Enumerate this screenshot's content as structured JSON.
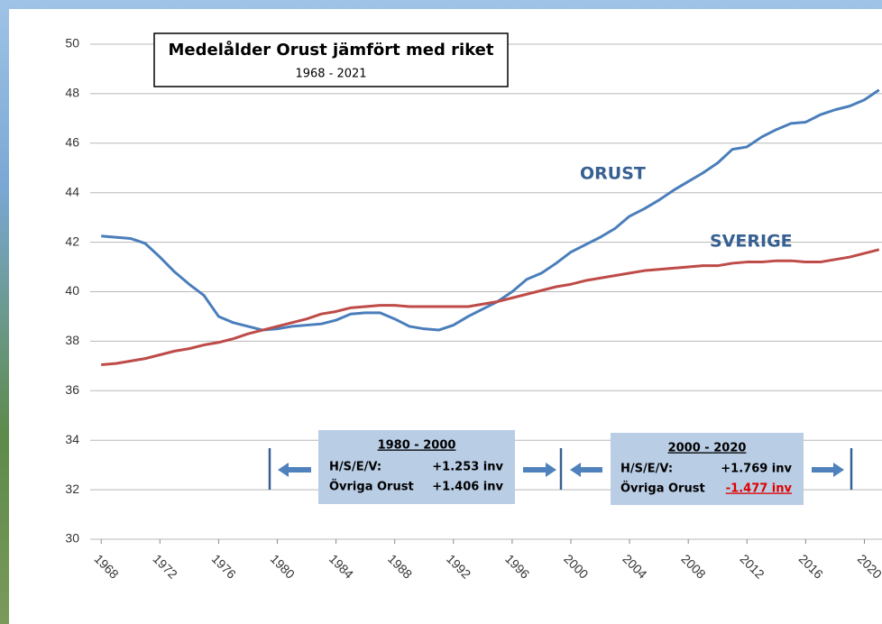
{
  "chart_data": {
    "type": "line",
    "title": "Medelålder Orust jämfört med riket",
    "subtitle": "1968 - 2021",
    "x": [
      1968,
      1969,
      1970,
      1971,
      1972,
      1973,
      1974,
      1975,
      1976,
      1977,
      1978,
      1979,
      1980,
      1981,
      1982,
      1983,
      1984,
      1985,
      1986,
      1987,
      1988,
      1989,
      1990,
      1991,
      1992,
      1993,
      1994,
      1995,
      1996,
      1997,
      1998,
      1999,
      2000,
      2001,
      2002,
      2003,
      2004,
      2005,
      2006,
      2007,
      2008,
      2009,
      2010,
      2011,
      2012,
      2013,
      2014,
      2015,
      2016,
      2017,
      2018,
      2019,
      2020,
      2021
    ],
    "series": [
      {
        "name": "ORUST",
        "color": "#4a7ebb",
        "values": [
          42.25,
          42.2,
          42.15,
          41.95,
          41.4,
          40.8,
          40.3,
          39.85,
          39.0,
          38.75,
          38.6,
          38.45,
          38.5,
          38.6,
          38.65,
          38.7,
          38.85,
          39.1,
          39.15,
          39.15,
          38.9,
          38.6,
          38.5,
          38.45,
          38.65,
          39.0,
          39.3,
          39.6,
          40.0,
          40.5,
          40.75,
          41.15,
          41.6,
          41.9,
          42.2,
          42.55,
          43.05,
          43.35,
          43.7,
          44.1,
          44.45,
          44.8,
          45.2,
          45.75,
          45.85,
          46.25,
          46.55,
          46.8,
          46.85,
          47.15,
          47.35,
          47.5,
          47.75,
          48.15
        ]
      },
      {
        "name": "SVERIGE",
        "color": "#be4b48",
        "values": [
          37.05,
          37.1,
          37.2,
          37.3,
          37.45,
          37.6,
          37.7,
          37.85,
          37.95,
          38.1,
          38.3,
          38.45,
          38.6,
          38.75,
          38.9,
          39.1,
          39.2,
          39.35,
          39.4,
          39.45,
          39.45,
          39.4,
          39.4,
          39.4,
          39.4,
          39.4,
          39.5,
          39.6,
          39.75,
          39.9,
          40.05,
          40.2,
          40.3,
          40.45,
          40.55,
          40.65,
          40.75,
          40.85,
          40.9,
          40.95,
          41.0,
          41.05,
          41.05,
          41.15,
          41.2,
          41.2,
          41.25,
          41.25,
          41.2,
          41.2,
          41.3,
          41.4,
          41.55,
          41.7
        ]
      }
    ],
    "xlim": [
      1967.25,
      2021.2
    ],
    "ylim": [
      30,
      50
    ],
    "xticks": [
      1968,
      1972,
      1976,
      1980,
      1984,
      1988,
      1992,
      1996,
      2000,
      2004,
      2008,
      2012,
      2016,
      2020
    ],
    "yticks": [
      30,
      32,
      34,
      36,
      38,
      40,
      42,
      44,
      46,
      48,
      50
    ],
    "grid": true,
    "annotations": [
      {
        "title": "1980 - 2000",
        "rows": [
          [
            "H/S/E/V:",
            "+1.253 inv"
          ],
          [
            "Övriga Orust",
            "+1.406 inv"
          ]
        ]
      },
      {
        "title": "2000 - 2020",
        "rows": [
          [
            "H/S/E/V:",
            "+1.769 inv"
          ],
          [
            "Övriga Orust",
            "-1.477 inv"
          ]
        ]
      }
    ]
  }
}
